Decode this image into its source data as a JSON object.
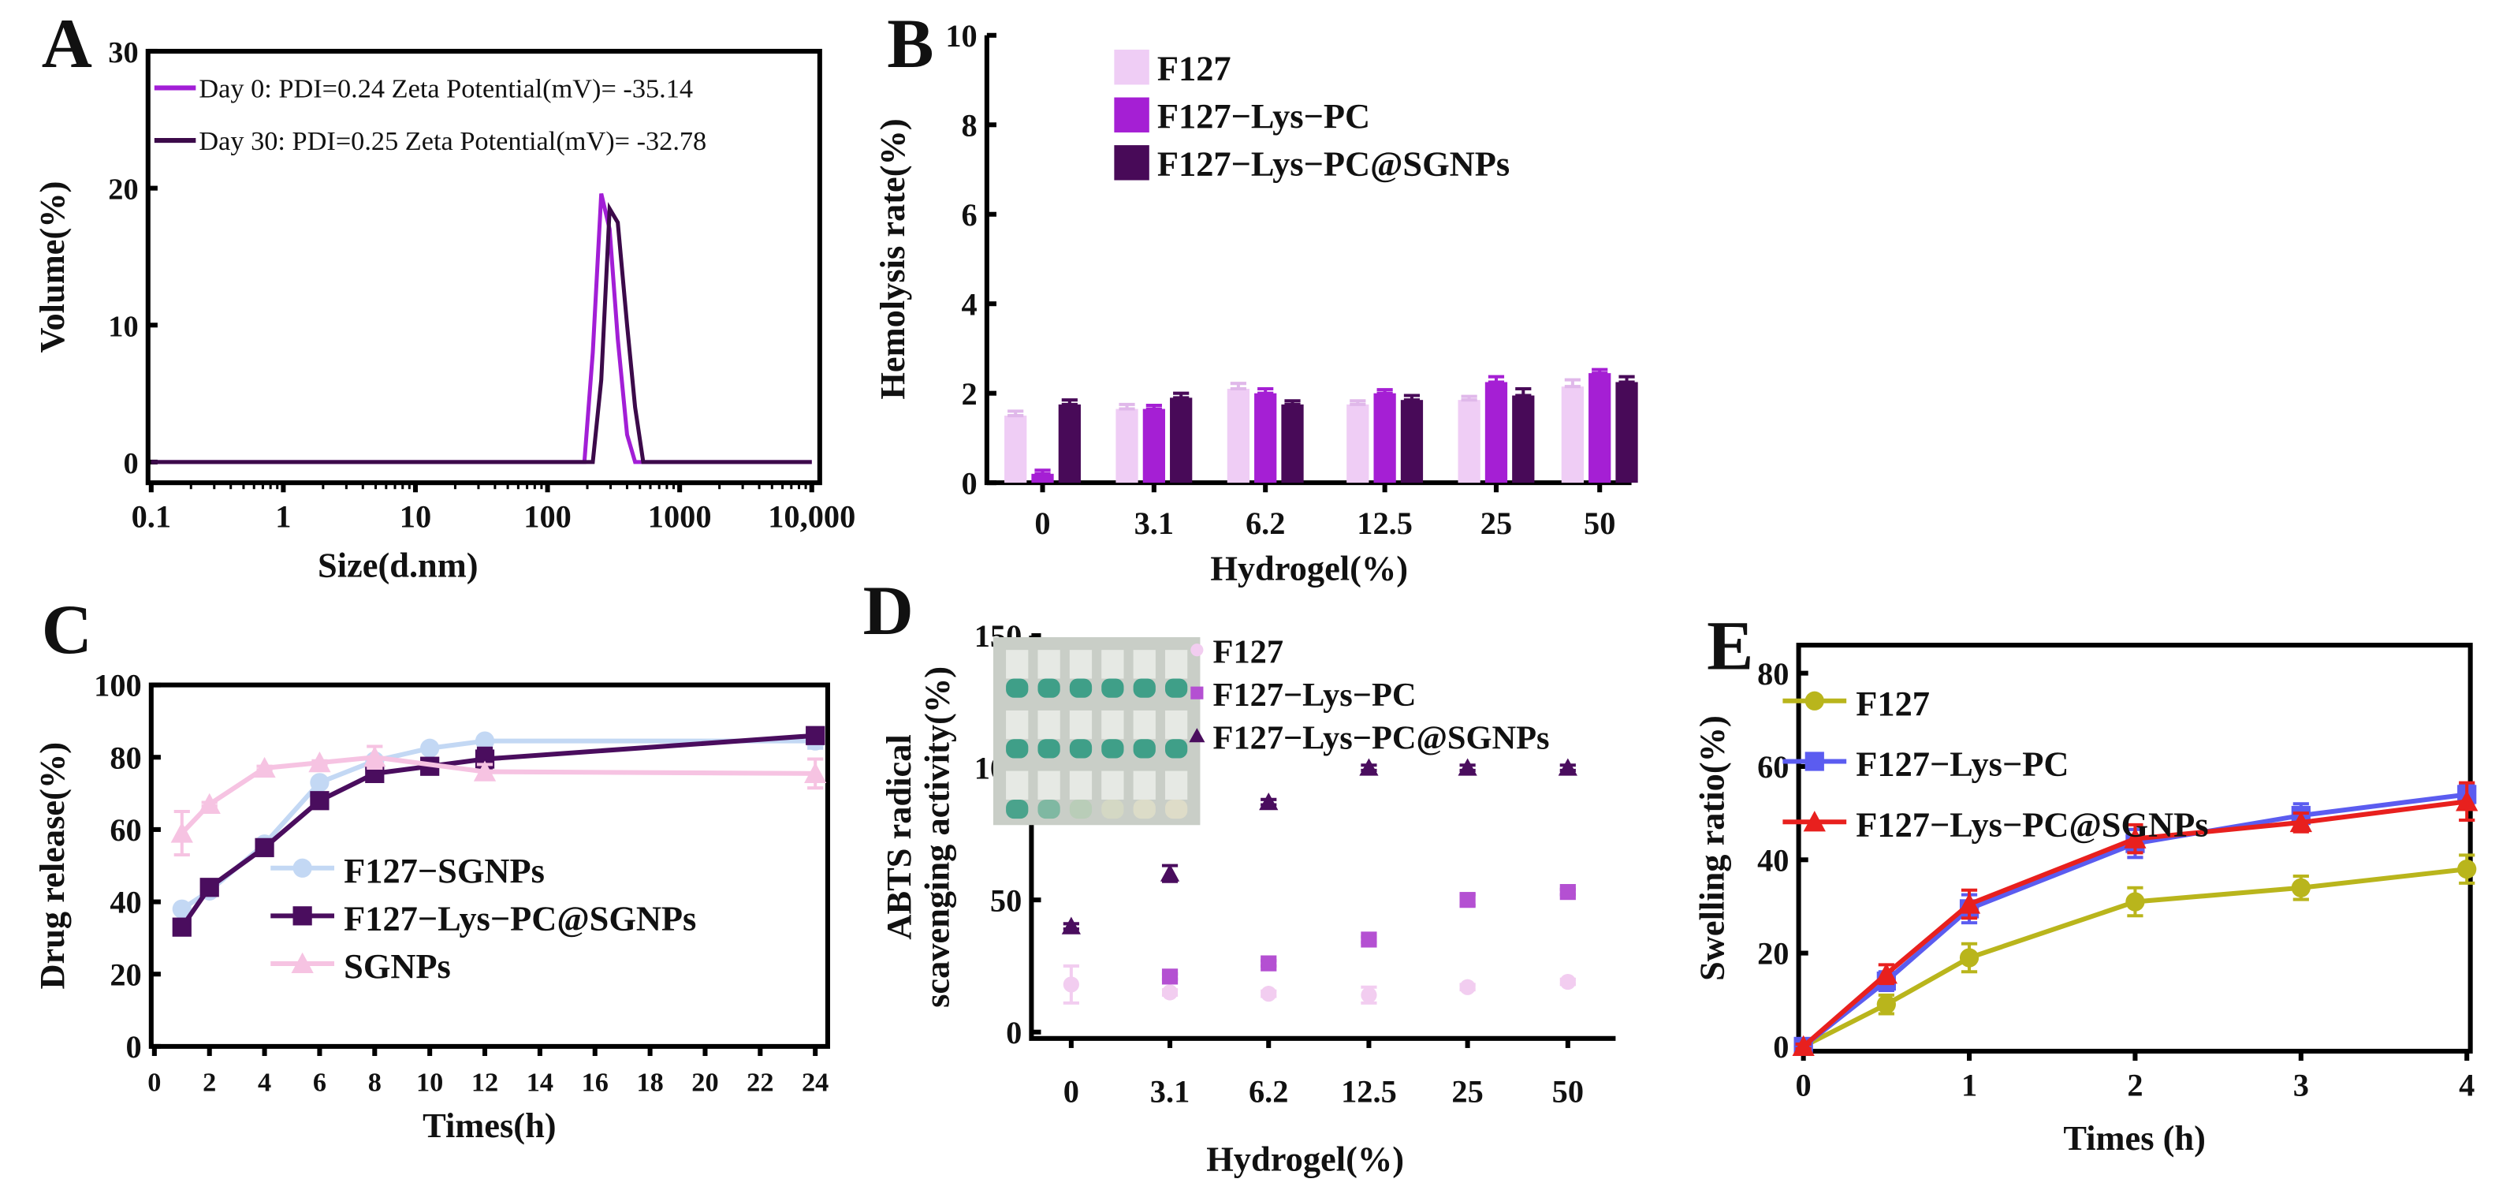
{
  "chart_data": [
    {
      "panel": "A",
      "type": "line",
      "xlabel": "Size(d.nm)",
      "ylabel": "Volume(%)",
      "xscale": "log",
      "xlim": [
        0.1,
        10000
      ],
      "ylim": [
        0,
        30
      ],
      "xticks": [
        0.1,
        1,
        10,
        100,
        1000,
        10000
      ],
      "xtick_labels": [
        "0.1",
        "1",
        "10",
        "100",
        "1000",
        "10,000"
      ],
      "yticks": [
        0,
        10,
        20,
        30
      ],
      "ytick_labels": [
        "0",
        "10",
        "20",
        "30"
      ],
      "legend_position": "top-left",
      "series": [
        {
          "name": "Day 0: PDI=0.24 Zeta Potential(mV)= -35.14",
          "color": "#a21ed6",
          "points": [
            [
              0.1,
              0
            ],
            [
              190,
              0
            ],
            [
              220,
              8
            ],
            [
              255,
              19.6
            ],
            [
              295,
              17
            ],
            [
              340,
              9
            ],
            [
              400,
              2
            ],
            [
              460,
              0
            ],
            [
              10000,
              0
            ]
          ]
        },
        {
          "name": "Day 30: PDI=0.25 Zeta Potential(mV)= -32.78",
          "color": "#3c0a4a",
          "points": [
            [
              0.1,
              0
            ],
            [
              220,
              0
            ],
            [
              255,
              6
            ],
            [
              295,
              18.5
            ],
            [
              340,
              17.5
            ],
            [
              400,
              10
            ],
            [
              460,
              4
            ],
            [
              530,
              0
            ],
            [
              10000,
              0
            ]
          ]
        }
      ]
    },
    {
      "panel": "B",
      "type": "bar",
      "xlabel": "Hydrogel(%)",
      "ylabel": "Hemolysis rate(%)",
      "categories": [
        "0",
        "3.1",
        "6.2",
        "12.5",
        "25",
        "50"
      ],
      "ylim": [
        0,
        10
      ],
      "yticks": [
        0,
        2,
        4,
        6,
        8,
        10
      ],
      "ytick_labels": [
        "0",
        "2",
        "4",
        "6",
        "8",
        "10"
      ],
      "legend_position": "top-center",
      "series": [
        {
          "name": "F127",
          "color": "#efcdf5",
          "values": [
            1.5,
            1.65,
            2.1,
            1.75,
            1.85,
            2.15
          ],
          "errors": [
            0.1,
            0.1,
            0.12,
            0.08,
            0.08,
            0.15
          ]
        },
        {
          "name": "F127−Lys−PC",
          "color": "#a51fd4",
          "values": [
            0.2,
            1.65,
            2.0,
            2.0,
            2.25,
            2.45
          ],
          "errors": [
            0.08,
            0.08,
            0.1,
            0.08,
            0.12,
            0.08
          ]
        },
        {
          "name": "F127−Lys−PC@SGNPs",
          "color": "#480a58",
          "values": [
            1.75,
            1.9,
            1.75,
            1.85,
            1.95,
            2.25
          ],
          "errors": [
            0.1,
            0.1,
            0.08,
            0.1,
            0.15,
            0.12
          ]
        }
      ]
    },
    {
      "panel": "C",
      "type": "line",
      "xlabel": "Times(h)",
      "ylabel": "Drug release(%)",
      "xlim": [
        0,
        24.5
      ],
      "ylim": [
        0,
        100
      ],
      "xticks": [
        0,
        2,
        4,
        6,
        8,
        10,
        12,
        14,
        16,
        18,
        20,
        22,
        24
      ],
      "xtick_labels": [
        "0",
        "2",
        "4",
        "6",
        "8",
        "10",
        "12",
        "14",
        "16",
        "18",
        "20",
        "22",
        "24"
      ],
      "yticks": [
        0,
        20,
        40,
        60,
        80,
        100
      ],
      "ytick_labels": [
        "0",
        "20",
        "40",
        "60",
        "80",
        "100"
      ],
      "legend_position": "bottom-center",
      "series": [
        {
          "name": "F127−SGNPs",
          "color": "#c3d8f4",
          "marker": "circle",
          "points": [
            [
              1,
              38
            ],
            [
              2,
              43
            ],
            [
              4,
              56
            ],
            [
              6,
              73
            ],
            [
              8,
              79
            ],
            [
              10,
              82.5
            ],
            [
              12,
              84.5
            ],
            [
              24,
              84.5
            ]
          ],
          "errors": [
            1,
            1,
            1,
            1,
            1,
            0.5,
            0.5,
            2
          ]
        },
        {
          "name": "F127−Lys−PC@SGNPs",
          "color": "#4a0d5e",
          "marker": "square",
          "points": [
            [
              1,
              33
            ],
            [
              2,
              44
            ],
            [
              4,
              55
            ],
            [
              6,
              68
            ],
            [
              8,
              75.5
            ],
            [
              10,
              77.5
            ],
            [
              12,
              79.5
            ],
            [
              24,
              86
            ]
          ],
          "errors": [
            1,
            1,
            1,
            1,
            1,
            1,
            3,
            1.5
          ]
        },
        {
          "name": "SGNPs",
          "color": "#f6c3e2",
          "marker": "triangle",
          "points": [
            [
              1,
              59
            ],
            [
              2,
              67
            ],
            [
              4,
              77
            ],
            [
              6,
              78.5
            ],
            [
              8,
              80
            ],
            [
              12,
              76
            ],
            [
              24,
              75.5
            ]
          ],
          "errors": [
            6,
            0.5,
            0.5,
            0.5,
            3,
            2,
            4
          ]
        }
      ]
    },
    {
      "panel": "D",
      "type": "scatter",
      "xlabel": "Hydrogel(%)",
      "ylabel": [
        "ABTS radical",
        "scavenging activity(%)"
      ],
      "categories": [
        "0",
        "3.1",
        "6.2",
        "12.5",
        "25",
        "50"
      ],
      "ylim": [
        0,
        150
      ],
      "yticks": [
        0,
        50,
        100,
        150
      ],
      "ytick_labels": [
        "0",
        "50",
        "100",
        "150"
      ],
      "legend_position": "top-center",
      "inset": "photo of ABTS assay tubes (3 rows)",
      "series": [
        {
          "name": "F127",
          "color": "#f2cdf0",
          "marker": "circle",
          "values": [
            18,
            15,
            14.5,
            14,
            17,
            19
          ],
          "errors": [
            7,
            1,
            1,
            3,
            1,
            1
          ]
        },
        {
          "name": "F127−Lys−PC",
          "color": "#b450d2",
          "marker": "square",
          "values": [
            null,
            21,
            26,
            35,
            50,
            53
          ],
          "errors": [
            0,
            1,
            1,
            1,
            2,
            1
          ]
        },
        {
          "name": "F127−Lys−PC@SGNPs",
          "color": "#4a0d5e",
          "marker": "triangle",
          "values": [
            40,
            60,
            87,
            100,
            100,
            100
          ],
          "errors": [
            1,
            3,
            1,
            1,
            1,
            1
          ]
        }
      ]
    },
    {
      "panel": "E",
      "type": "line",
      "xlabel": "Times (h)",
      "ylabel": "Swelling ratio(%)",
      "xlim": [
        0,
        4
      ],
      "ylim": [
        0,
        88
      ],
      "xticks": [
        0,
        1,
        2,
        3,
        4
      ],
      "xtick_labels": [
        "0",
        "1",
        "2",
        "3",
        "4"
      ],
      "yticks": [
        0,
        20,
        40,
        60,
        80
      ],
      "ytick_labels": [
        "0",
        "20",
        "40",
        "60",
        "80"
      ],
      "legend_position": "top-left",
      "series": [
        {
          "name": "F127",
          "color": "#b9b51c",
          "marker": "circle",
          "points": [
            [
              0,
              0
            ],
            [
              0.5,
              9
            ],
            [
              1,
              19
            ],
            [
              2,
              31
            ],
            [
              3,
              34
            ],
            [
              4,
              38
            ]
          ],
          "errors": [
            0.5,
            2,
            3,
            3,
            2.5,
            3
          ]
        },
        {
          "name": "F127−Lys−PC",
          "color": "#5b5cf0",
          "marker": "square",
          "points": [
            [
              0,
              0
            ],
            [
              0.5,
              14
            ],
            [
              1,
              29.5
            ],
            [
              2,
              43.5
            ],
            [
              3,
              49.5
            ],
            [
              4,
              54
            ]
          ],
          "errors": [
            0.5,
            2,
            3,
            3,
            2.5,
            2
          ]
        },
        {
          "name": "F127−Lys−PC@SGNPs",
          "color": "#e8201e",
          "marker": "triangle",
          "points": [
            [
              0,
              0
            ],
            [
              0.5,
              15.5
            ],
            [
              1,
              30.5
            ],
            [
              2,
              44.5
            ],
            [
              3,
              48
            ],
            [
              4,
              52.5
            ]
          ],
          "errors": [
            0.5,
            2,
            3,
            3,
            2,
            4
          ]
        }
      ]
    }
  ]
}
